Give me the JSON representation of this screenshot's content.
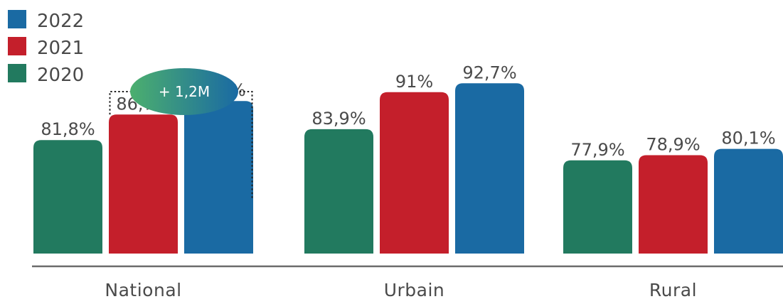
{
  "chart_data": {
    "type": "bar",
    "categories": [
      "National",
      "Urbain",
      "Rural"
    ],
    "series": [
      {
        "name": "2020",
        "color": "#227a5f",
        "values": [
          81.8,
          83.9,
          77.9
        ],
        "labels": [
          "81,8%",
          "83,9%",
          "77,9%"
        ]
      },
      {
        "name": "2021",
        "color": "#c41f2b",
        "values": [
          86.7,
          91.0,
          78.9
        ],
        "labels": [
          "86,7%",
          "91%",
          "78,9%"
        ]
      },
      {
        "name": "2022",
        "color": "#1a6aa3",
        "values": [
          89.3,
          92.7,
          80.1
        ],
        "labels": [
          "89,3%",
          "92,7%",
          "80,1%"
        ]
      }
    ],
    "legend": {
      "placement": "top-left",
      "order": [
        "2022",
        "2021",
        "2020"
      ]
    },
    "annotation": {
      "text": "+ 1,2M",
      "category": "National",
      "from_series": "2021",
      "to_series": "2022",
      "colors": [
        "#4caf6e",
        "#1a6aa3"
      ]
    },
    "ylim": [
      60,
      95
    ],
    "grid": false,
    "axis_color": "#6b6b6b"
  }
}
